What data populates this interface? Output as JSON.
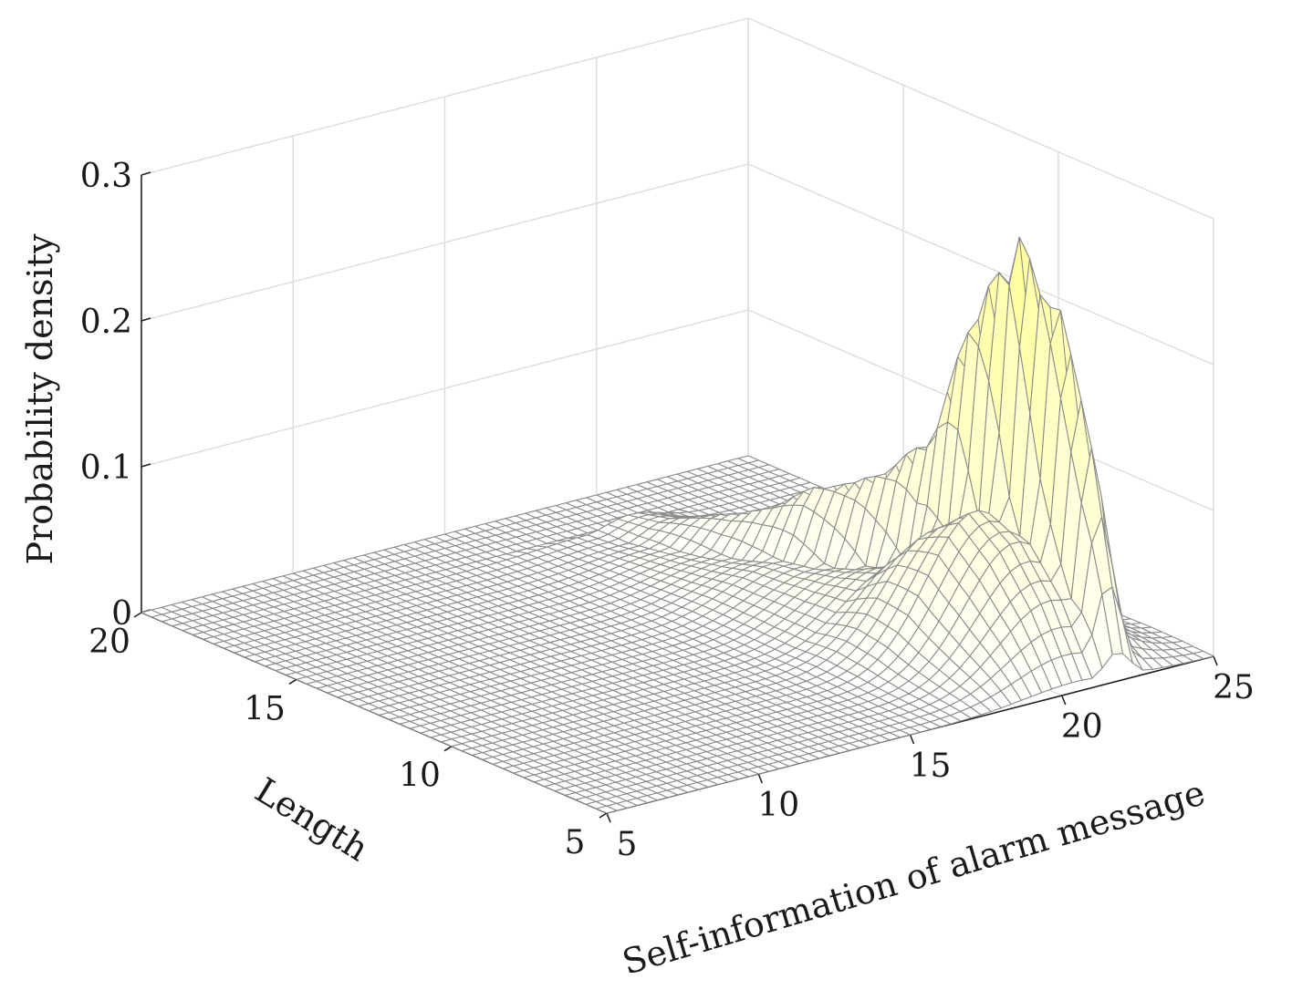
{
  "chart_data": {
    "type": "surface3d",
    "title": "",
    "xlabel": "Self-information of alarm message",
    "ylabel": "Length",
    "zlabel": "Probability density",
    "xlim": [
      5,
      25
    ],
    "ylim": [
      5,
      20
    ],
    "zlim": [
      0,
      0.3
    ],
    "x_ticks": [
      "5",
      "10",
      "15",
      "20",
      "25"
    ],
    "y_ticks": [
      "5",
      "10",
      "15",
      "20"
    ],
    "z_ticks": [
      "0",
      "0.1",
      "0.2",
      "0.3"
    ],
    "grid": true,
    "colormap": [
      "#ffffff",
      "#ffffa0"
    ],
    "edge_color": "#8c8c8c",
    "peaks": [
      {
        "length": 5,
        "self_information": 21.8,
        "density": 0.02
      },
      {
        "length": 6,
        "self_information": 22.0,
        "density": 0.15
      },
      {
        "length": 7,
        "self_information": 21.9,
        "density": 0.24
      },
      {
        "length": 8,
        "self_information": 21.6,
        "density": 0.28
      },
      {
        "length": 9,
        "self_information": 21.2,
        "density": 0.22
      },
      {
        "length": 10,
        "self_information": 20.9,
        "density": 0.13
      },
      {
        "length": 11,
        "self_information": 20.6,
        "density": 0.1
      },
      {
        "length": 12,
        "self_information": 20.3,
        "density": 0.08
      },
      {
        "length": 13,
        "self_information": 20.1,
        "density": 0.07
      },
      {
        "length": 14,
        "self_information": 19.9,
        "density": 0.05
      },
      {
        "length": 15,
        "self_information": 19.7,
        "density": 0.035
      },
      {
        "length": 16,
        "self_information": 19.5,
        "density": 0.025
      },
      {
        "length": 17,
        "self_information": 19.3,
        "density": 0.015
      },
      {
        "length": 18,
        "self_information": 19.1,
        "density": 0.01
      }
    ]
  }
}
